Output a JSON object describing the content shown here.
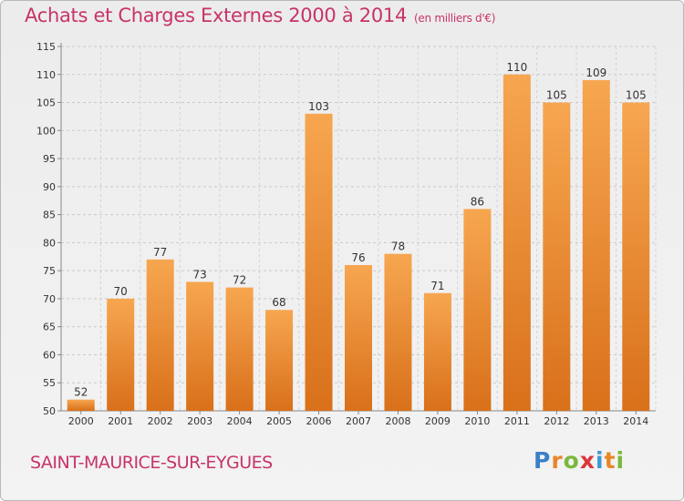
{
  "header": {
    "title": "Achats et Charges Externes 2000 à 2014",
    "unit": "(en milliers d'€)"
  },
  "footer": {
    "commune": "SAINT-MAURICE-SUR-EYGUES"
  },
  "logo": {
    "letters": [
      "P",
      "r",
      "o",
      "x",
      "i",
      "t",
      "i"
    ],
    "colors": [
      "#3a7fc8",
      "#e8862a",
      "#7ab83c",
      "#d9373a",
      "#3a9ad6",
      "#e8862a",
      "#7ab83c"
    ]
  },
  "chart_data": {
    "type": "bar",
    "title": "Achats et Charges Externes 2000 à 2014",
    "categories": [
      "2000",
      "2001",
      "2002",
      "2003",
      "2004",
      "2005",
      "2006",
      "2007",
      "2008",
      "2009",
      "2010",
      "2011",
      "2012",
      "2013",
      "2014"
    ],
    "values": [
      52,
      70,
      77,
      73,
      72,
      68,
      103,
      76,
      78,
      71,
      86,
      110,
      105,
      109,
      105
    ],
    "value_labels": [
      "52",
      "70",
      "77",
      "73",
      "72",
      "68",
      "103",
      "76",
      "78",
      "71",
      "86",
      "110",
      "105",
      "109",
      "105"
    ],
    "ylim": [
      50,
      115
    ],
    "yticks": [
      50,
      55,
      60,
      65,
      70,
      75,
      80,
      85,
      90,
      95,
      100,
      105,
      110,
      115
    ],
    "ytick_labels": [
      "50",
      "55",
      "60",
      "65",
      "70",
      "75",
      "80",
      "85",
      "90",
      "95",
      "100",
      "105",
      "110",
      "115"
    ],
    "grid": true,
    "bar_color": "#e8862a"
  }
}
